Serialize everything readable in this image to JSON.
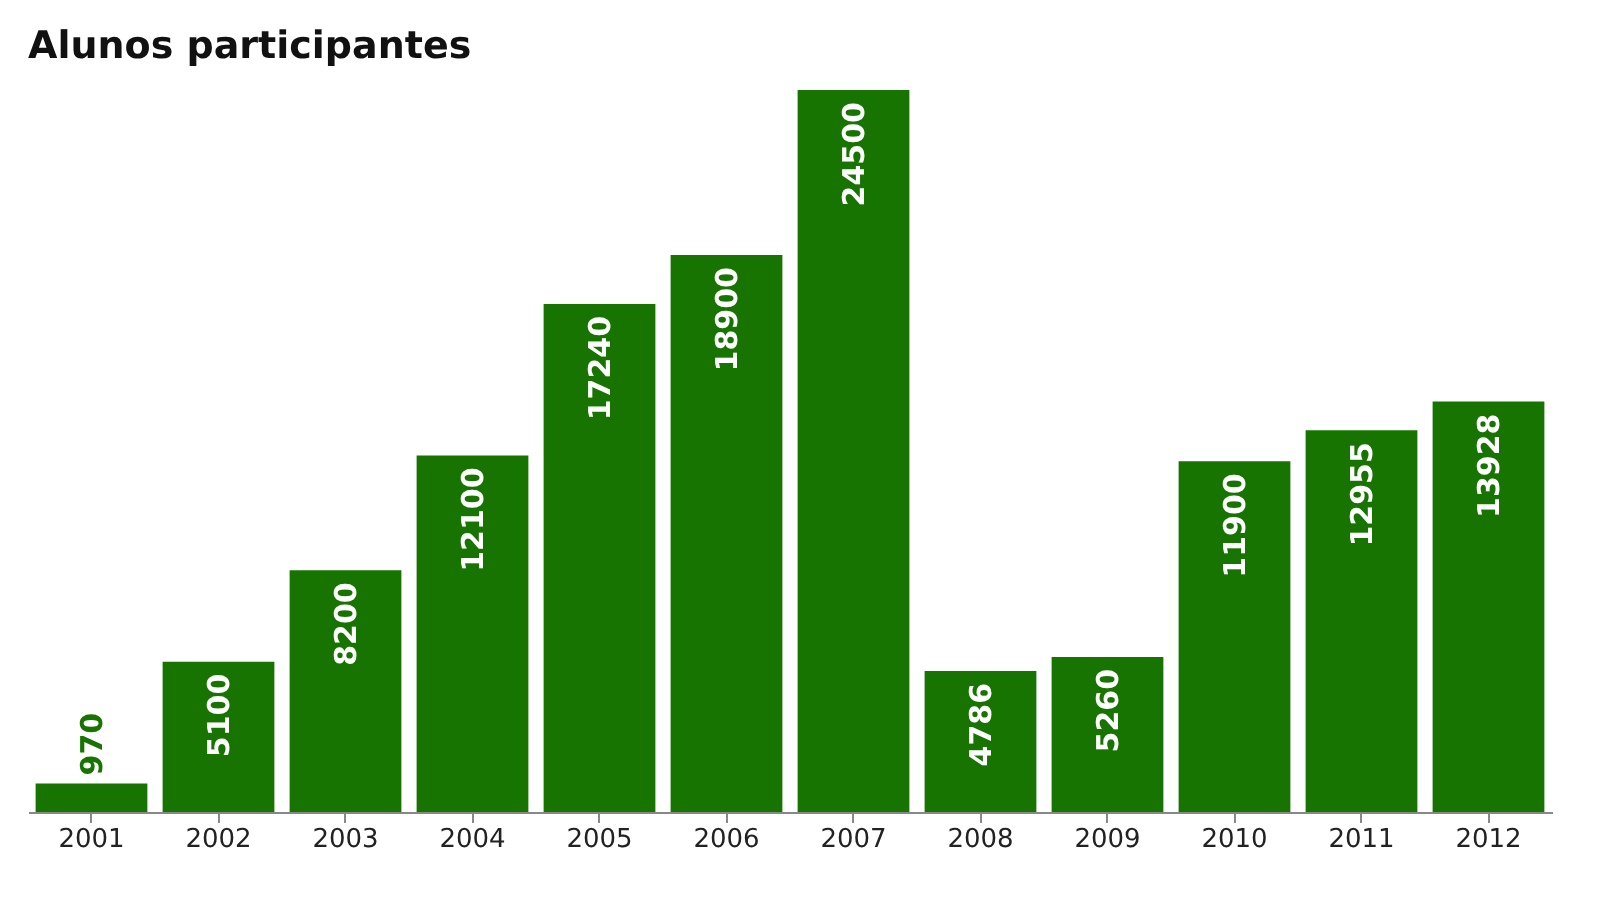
{
  "chart_data": {
    "type": "bar",
    "title": "Alunos participantes",
    "categories": [
      "2001",
      "2002",
      "2003",
      "2004",
      "2005",
      "2006",
      "2007",
      "2008",
      "2009",
      "2010",
      "2011",
      "2012"
    ],
    "values": [
      970,
      5100,
      8200,
      12100,
      17240,
      18900,
      24500,
      4786,
      5260,
      11900,
      12955,
      13928
    ],
    "color": "#177400",
    "data_labels": true
  }
}
